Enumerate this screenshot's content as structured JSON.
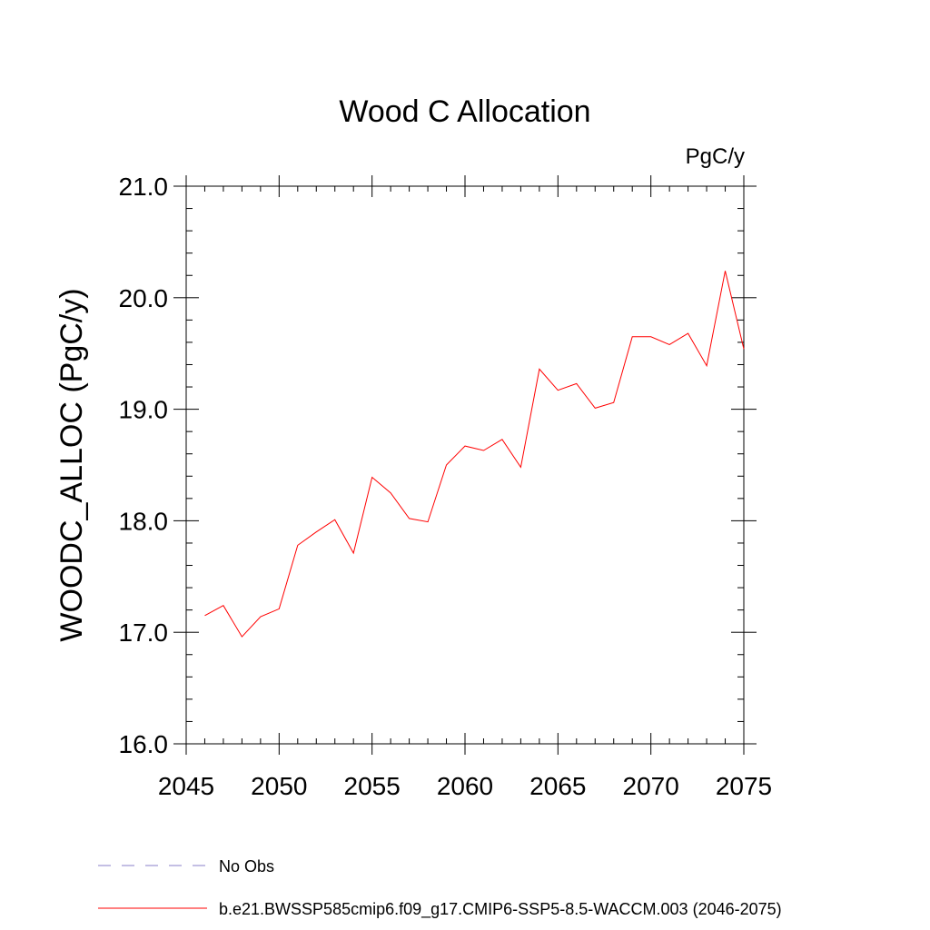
{
  "chart_data": {
    "type": "line",
    "title": "Wood C Allocation",
    "units": "PgC/y",
    "xlabel": "",
    "ylabel": "WOODC_ALLOC  (PgC/y)",
    "xlim": [
      2045,
      2075
    ],
    "ylim": [
      16.0,
      21.0
    ],
    "x_ticks": [
      2045,
      2050,
      2055,
      2060,
      2065,
      2070,
      2075
    ],
    "x_tick_labels": [
      "2045",
      "2050",
      "2055",
      "2060",
      "2065",
      "2070",
      "2075"
    ],
    "y_ticks": [
      16.0,
      17.0,
      18.0,
      19.0,
      20.0,
      21.0
    ],
    "y_tick_labels": [
      "16.0",
      "17.0",
      "18.0",
      "19.0",
      "20.0",
      "21.0"
    ],
    "grid": false,
    "legend_position": "bottom-left",
    "series": [
      {
        "name": "b.e21.BWSSP585cmip6.f09_g17.CMIP6-SSP5-8.5-WACCM.003 (2046-2075)",
        "color": "#ff0000",
        "style": "solid",
        "x": [
          2046,
          2047,
          2048,
          2049,
          2050,
          2051,
          2052,
          2053,
          2054,
          2055,
          2056,
          2057,
          2058,
          2059,
          2060,
          2061,
          2062,
          2063,
          2064,
          2065,
          2066,
          2067,
          2068,
          2069,
          2070,
          2071,
          2072,
          2073,
          2074,
          2075
        ],
        "values": [
          17.15,
          17.24,
          16.96,
          17.14,
          17.21,
          17.78,
          17.9,
          18.01,
          17.71,
          18.39,
          18.25,
          18.02,
          17.99,
          18.5,
          18.67,
          18.63,
          18.73,
          18.48,
          19.36,
          19.17,
          19.23,
          19.01,
          19.06,
          19.65,
          19.65,
          19.58,
          19.68,
          19.39,
          20.24,
          19.54
        ]
      }
    ],
    "legend": [
      {
        "label": "No Obs",
        "color": "#8a7fc8",
        "style": "dashed"
      },
      {
        "label": "b.e21.BWSSP585cmip6.f09_g17.CMIP6-SSP5-8.5-WACCM.003 (2046-2075)",
        "color": "#ff0000",
        "style": "solid"
      }
    ]
  }
}
